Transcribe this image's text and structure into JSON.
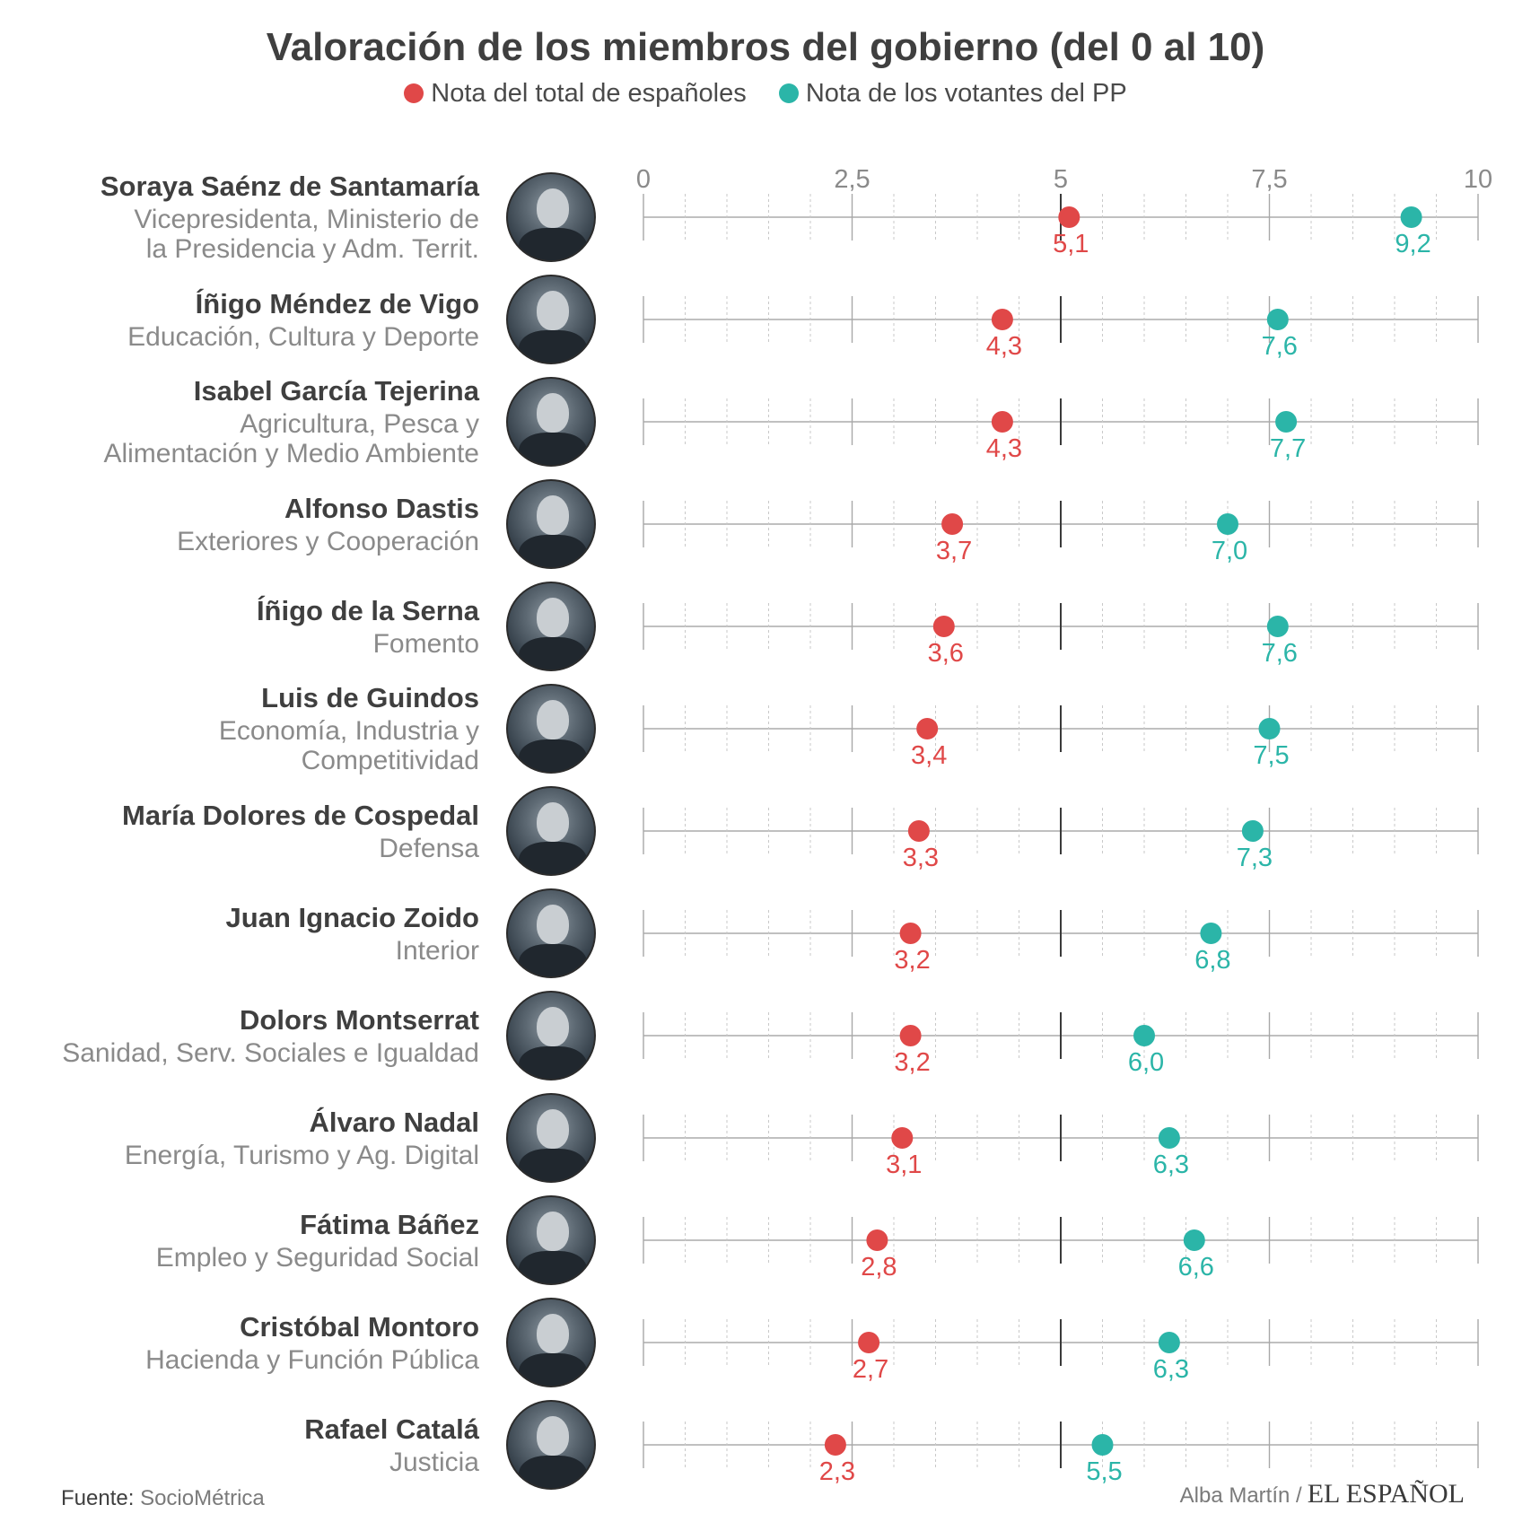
{
  "title": "Valoración de los miembros del gobierno (del 0 al 10)",
  "legend": [
    {
      "label": "Nota del total de españoles",
      "color": "#e04848"
    },
    {
      "label": "Nota de los votantes del PP",
      "color": "#2bb5a8"
    }
  ],
  "rows": [
    {
      "name": "Soraya Saénz de Santamaría",
      "role": [
        "Vicepresidenta, Ministerio de",
        "la Presidencia y Adm. Territ."
      ]
    },
    {
      "name": "Íñigo Méndez de Vigo",
      "role": [
        "Educación, Cultura y Deporte"
      ]
    },
    {
      "name": "Isabel García Tejerina",
      "role": [
        "Agricultura, Pesca y",
        "Alimentación y Medio Ambiente"
      ]
    },
    {
      "name": "Alfonso Dastis",
      "role": [
        "Exteriores y Cooperación"
      ]
    },
    {
      "name": "Íñigo de la Serna",
      "role": [
        "Fomento"
      ]
    },
    {
      "name": "Luis de Guindos",
      "role": [
        "Economía, Industria y",
        "Competitividad"
      ]
    },
    {
      "name": "María Dolores de Cospedal",
      "role": [
        "Defensa"
      ]
    },
    {
      "name": "Juan Ignacio Zoido",
      "role": [
        "Interior"
      ]
    },
    {
      "name": "Dolors Montserrat",
      "role": [
        "Sanidad, Serv. Sociales e Igualdad"
      ]
    },
    {
      "name": "Álvaro Nadal",
      "role": [
        "Energía, Turismo y Ag. Digital"
      ]
    },
    {
      "name": "Fátima Báñez",
      "role": [
        "Empleo y Seguridad Social"
      ]
    },
    {
      "name": "Cristóbal Montoro",
      "role": [
        "Hacienda y Función Pública"
      ]
    },
    {
      "name": "Rafael Catalá",
      "role": [
        "Justicia"
      ]
    }
  ],
  "chart_data": {
    "type": "scatter",
    "title": "Valoración de los miembros del gobierno (del 0 al 10)",
    "xlim": [
      0,
      10
    ],
    "x_ticks": [
      0,
      2.5,
      5,
      7.5,
      10
    ],
    "x_tick_labels": [
      "0",
      "2,5",
      "5",
      "7,5",
      "10"
    ],
    "categories": [
      "Soraya Saénz de Santamaría",
      "Íñigo Méndez de Vigo",
      "Isabel García Tejerina",
      "Alfonso Dastis",
      "Íñigo de la Serna",
      "Luis de Guindos",
      "María Dolores de Cospedal",
      "Juan Ignacio Zoido",
      "Dolors Montserrat",
      "Álvaro Nadal",
      "Fátima Báñez",
      "Cristóbal Montoro",
      "Rafael Catalá"
    ],
    "series": [
      {
        "name": "Nota del total de españoles",
        "color": "#e04848",
        "values": [
          5.1,
          4.3,
          4.3,
          3.7,
          3.6,
          3.4,
          3.3,
          3.2,
          3.2,
          3.1,
          2.8,
          2.7,
          2.3
        ],
        "labels": [
          "5,1",
          "4,3",
          "4,3",
          "3,7",
          "3,6",
          "3,4",
          "3,3",
          "3,2",
          "3,2",
          "3,1",
          "2,8",
          "2,7",
          "2,3"
        ]
      },
      {
        "name": "Nota de los votantes del PP",
        "color": "#2bb5a8",
        "values": [
          9.2,
          7.6,
          7.7,
          7.0,
          7.6,
          7.5,
          7.3,
          6.8,
          6.0,
          6.3,
          6.6,
          6.3,
          5.5
        ],
        "labels": [
          "9,2",
          "7,6",
          "7,7",
          "7,0",
          "7,6",
          "7,5",
          "7,3",
          "6,8",
          "6,0",
          "6,3",
          "6,6",
          "6,3",
          "5,5"
        ]
      }
    ]
  },
  "footer": {
    "source_label": "Fuente:",
    "source_value": "SocioMétrica",
    "author": "Alba Martín /",
    "brand": "EL ESPAÑOL"
  }
}
